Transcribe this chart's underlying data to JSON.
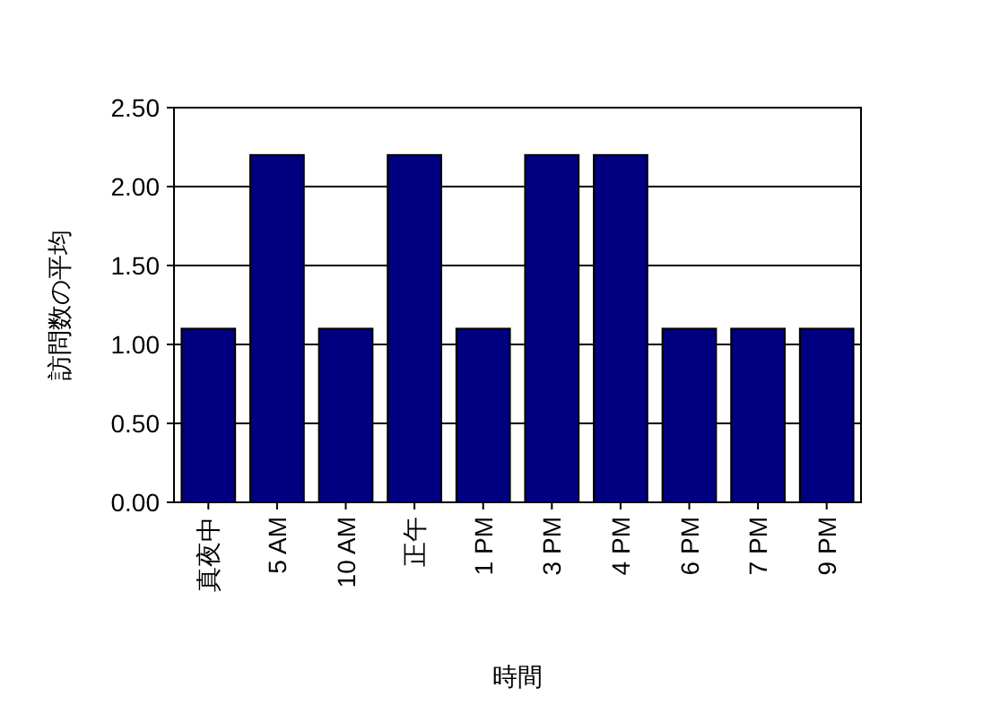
{
  "chart_data": {
    "type": "bar",
    "xlabel": "時間",
    "ylabel": "訪問数の平均",
    "categories": [
      "真夜中",
      "5 AM",
      "10 AM",
      "正午",
      "1 PM",
      "3 PM",
      "4 PM",
      "6 PM",
      "7 PM",
      "9 PM"
    ],
    "values": [
      1.1,
      2.2,
      1.1,
      2.2,
      1.1,
      2.2,
      2.2,
      1.1,
      1.1,
      1.1
    ],
    "color": "#000080",
    "ylim": [
      0,
      2.5
    ],
    "yticks": [
      {
        "value": 0,
        "label": "0.00"
      },
      {
        "value": 0.5,
        "label": "0.50"
      },
      {
        "value": 1,
        "label": "1.00"
      },
      {
        "value": 1.5,
        "label": "1.50"
      },
      {
        "value": 2,
        "label": "2.00"
      },
      {
        "value": 2.5,
        "label": "2.50"
      }
    ],
    "grid": "y"
  }
}
